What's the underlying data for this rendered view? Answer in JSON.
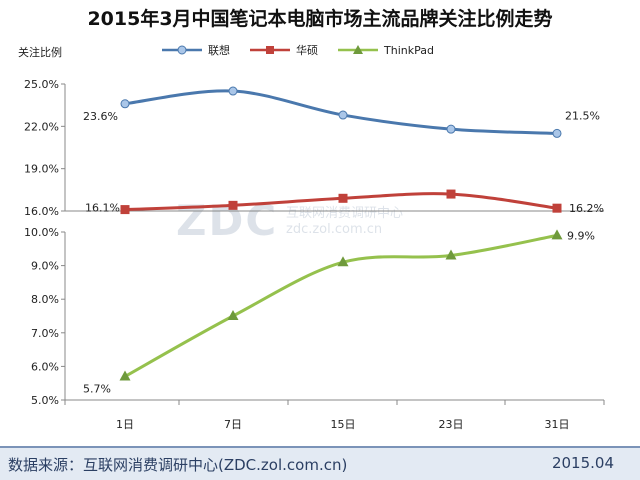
{
  "title": "2015年3月中国笔记本电脑市场主流品牌关注比例走势",
  "footer": {
    "source": "数据来源：互联网消费调研中心(ZDC.zol.com.cn)",
    "date": "2015.04"
  },
  "watermark": {
    "logo": "ZDC",
    "text": "互联网消费调研中心",
    "url": "zdc.zol.com.cn"
  },
  "chart_data": {
    "type": "line",
    "title": "2015年3月中国笔记本电脑市场主流品牌关注比例走势",
    "ylabel": "关注比例",
    "xlabel": "",
    "categories": [
      "1日",
      "7日",
      "15日",
      "23日",
      "31日"
    ],
    "legend_position": "top",
    "grid": false,
    "broken_axis": true,
    "upper_panel": {
      "ylim": [
        16.0,
        25.0
      ],
      "yticks": [
        "25.0%",
        "22.0%",
        "19.0%",
        "16.0%"
      ]
    },
    "lower_panel": {
      "ylim": [
        5.0,
        10.0
      ],
      "yticks": [
        "10.0%",
        "9.0%",
        "8.0%",
        "7.0%",
        "6.0%",
        "5.0%"
      ]
    },
    "series": [
      {
        "name": "联想",
        "color": "#4a78ad",
        "marker": "circle",
        "panel": "upper",
        "values": [
          23.6,
          24.5,
          22.8,
          21.8,
          21.5
        ],
        "labels": [
          "23.6%",
          "",
          "",
          "",
          "21.5%"
        ]
      },
      {
        "name": "华硕",
        "color": "#c0413a",
        "marker": "square",
        "panel": "upper",
        "values": [
          16.1,
          16.4,
          16.9,
          17.2,
          16.2
        ],
        "labels": [
          "16.1%",
          "",
          "",
          "",
          "16.2%"
        ]
      },
      {
        "name": "ThinkPad",
        "color": "#95c14d",
        "marker": "triangle",
        "panel": "lower",
        "values": [
          5.7,
          7.5,
          9.1,
          9.3,
          9.9
        ],
        "labels": [
          "5.7%",
          "",
          "",
          "",
          "9.9%"
        ]
      }
    ]
  }
}
